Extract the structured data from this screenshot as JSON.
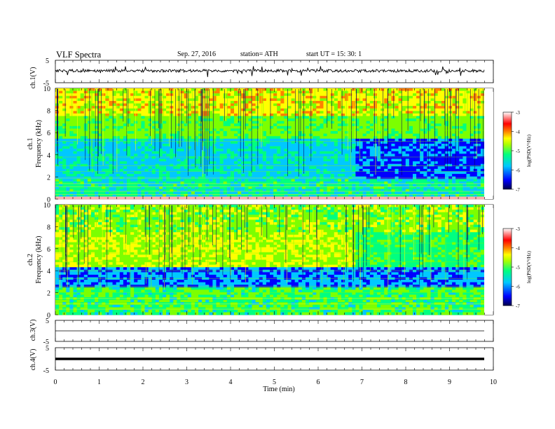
{
  "header": {
    "title": "VLF  Spectra",
    "date": "Sep. 27, 2016",
    "station": "station= ATH",
    "start": "start  UT  =   15: 30: 1"
  },
  "colors": {
    "spectrogram_colormap": [
      "#00008b",
      "#0000ff",
      "#00c8ff",
      "#00ff80",
      "#7cff00",
      "#ffff00",
      "#ff8000",
      "#ff0000",
      "#ffb0b0",
      "#ffffff"
    ],
    "waveform": "#000000"
  },
  "chart_data": [
    {
      "type": "line",
      "panel": "ch1-waveform",
      "ylabel": "ch.1(V)",
      "yticks": [
        "5",
        "-5"
      ],
      "ylim": [
        -5,
        5
      ],
      "xlim": [
        0,
        10
      ],
      "series": [
        {
          "values_description_free": true,
          "mean": 0,
          "amplitude_approx": 1
        }
      ]
    },
    {
      "type": "heatmap",
      "panel": "ch1-spectrogram",
      "ylabel_top": "ch.1",
      "ylabel": "Frequency  (kHz)",
      "yticks": [
        "0",
        "2",
        "4",
        "6",
        "8",
        "10"
      ],
      "ylim": [
        0,
        10
      ],
      "xlim": [
        0,
        9.8
      ],
      "colorbar": {
        "label": "log(PSD(V²/Hz)",
        "ticks": [
          "-3",
          "-4",
          "-5",
          "-6",
          "-7"
        ],
        "range": [
          -7,
          -3
        ]
      }
    },
    {
      "type": "heatmap",
      "panel": "ch2-spectrogram",
      "ylabel_top": "ch.2",
      "ylabel": "Frequency  (kHz)",
      "yticks": [
        "0",
        "2",
        "4",
        "6",
        "8",
        "10"
      ],
      "ylim": [
        0,
        10
      ],
      "xlim": [
        0,
        9.8
      ],
      "colorbar": {
        "label": "log(PSD(V²/Hz)",
        "ticks": [
          "-3",
          "-4",
          "-5",
          "-6",
          "-7"
        ],
        "range": [
          -7,
          -3
        ]
      }
    },
    {
      "type": "line",
      "panel": "ch3-waveform",
      "ylabel": "ch.3(V)",
      "yticks": [
        "5",
        "-5"
      ],
      "ylim": [
        -5,
        5
      ],
      "xlim": [
        0,
        10
      ],
      "series": [
        {
          "constant": 0
        }
      ]
    },
    {
      "type": "line",
      "panel": "ch4-waveform",
      "ylabel": "ch.4(V)",
      "yticks": [
        "5",
        "-5"
      ],
      "ylim": [
        -5,
        5
      ],
      "xlim": [
        0,
        10
      ],
      "series": [
        {
          "constant": 0
        }
      ]
    }
  ],
  "xaxis": {
    "label": "Time  (min)",
    "ticks": [
      "0",
      "1",
      "2",
      "3",
      "4",
      "5",
      "6",
      "7",
      "8",
      "9",
      "10"
    ]
  }
}
